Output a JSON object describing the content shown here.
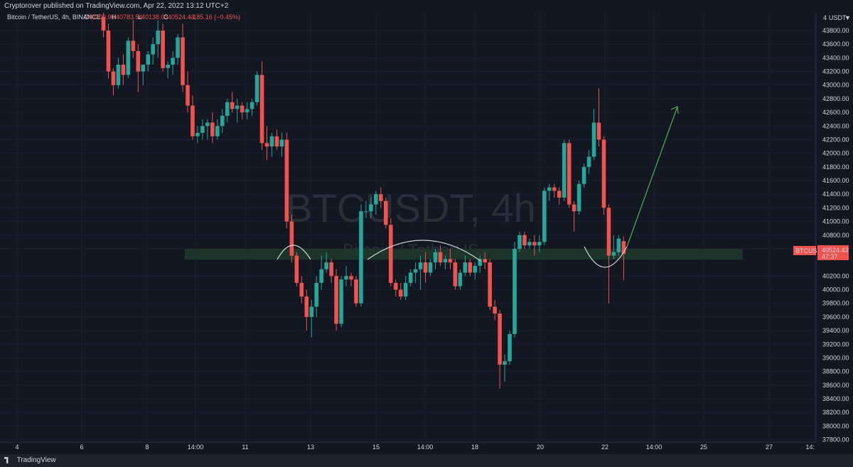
{
  "header": {
    "publisher_text": "Cryptorover published on TradingView.com, Apr 22, 2022 13:12 UTC+2"
  },
  "legend": {
    "symbol_text": "Bitcoin / TetherUS, 4h, BINANCE",
    "open_label": "O",
    "open_value": "40709.90",
    "high_label": "H",
    "high_value": "40783.54",
    "low_label": "L",
    "low_value": "40138.03",
    "close_label": "C",
    "close_value": "40524.43",
    "change_text": "−185.16 (−0.45%)"
  },
  "watermark": {
    "symbol": "BTCUSDT, 4h",
    "name": "Bitcoin / TetherUS"
  },
  "price_axis": {
    "currency": "USDT",
    "ticks": [
      "43800.00",
      "43600.00",
      "43400.00",
      "43200.00",
      "43000.00",
      "42800.00",
      "42600.00",
      "42400.00",
      "42200.00",
      "42000.00",
      "41800.00",
      "41600.00",
      "41400.00",
      "41200.00",
      "41000.00",
      "40800.00",
      "40600.00",
      "40200.00",
      "40000.00",
      "39800.00",
      "39600.00",
      "39400.00",
      "39200.00",
      "39000.00",
      "38800.00",
      "38600.00",
      "38400.00",
      "38200.00",
      "38000.00",
      "37800.00"
    ],
    "current_label": "BTCUSDT",
    "current_price": "40524.43",
    "countdown": "47:37"
  },
  "time_axis": {
    "labels": [
      "4",
      "6",
      "8",
      "14:00",
      "11",
      "13",
      "15",
      "14:00",
      "18",
      "20",
      "22",
      "14:00",
      "25",
      "27",
      "14:"
    ]
  },
  "footer": {
    "brand": "TradingView"
  },
  "chart_data": {
    "type": "candlestick",
    "symbol": "BTCUSDT",
    "timeframe": "4h",
    "exchange": "BINANCE",
    "ylim": [
      37700,
      44050
    ],
    "up_color": "#26a69a",
    "down_color": "#ef5350",
    "support_zone": [
      40440,
      40600
    ],
    "candles": [
      {
        "o": 44000,
        "h": 44100,
        "l": 43700,
        "c": 43800
      },
      {
        "o": 43800,
        "h": 43900,
        "l": 43100,
        "c": 43200
      },
      {
        "o": 43200,
        "h": 43250,
        "l": 42850,
        "c": 43000
      },
      {
        "o": 43000,
        "h": 43400,
        "l": 42950,
        "c": 43300
      },
      {
        "o": 43300,
        "h": 43450,
        "l": 43000,
        "c": 43150
      },
      {
        "o": 43150,
        "h": 43700,
        "l": 43100,
        "c": 43650
      },
      {
        "o": 43650,
        "h": 43950,
        "l": 43400,
        "c": 43500
      },
      {
        "o": 43500,
        "h": 43600,
        "l": 42900,
        "c": 43200
      },
      {
        "o": 43200,
        "h": 43300,
        "l": 43000,
        "c": 43300
      },
      {
        "o": 43300,
        "h": 43500,
        "l": 43200,
        "c": 43450
      },
      {
        "o": 43450,
        "h": 43700,
        "l": 43300,
        "c": 43600
      },
      {
        "o": 43600,
        "h": 43950,
        "l": 43400,
        "c": 43800
      },
      {
        "o": 43800,
        "h": 43900,
        "l": 43200,
        "c": 43250
      },
      {
        "o": 43250,
        "h": 43350,
        "l": 43100,
        "c": 43300
      },
      {
        "o": 43300,
        "h": 43500,
        "l": 43150,
        "c": 43400
      },
      {
        "o": 43400,
        "h": 43750,
        "l": 43300,
        "c": 43700
      },
      {
        "o": 43700,
        "h": 43900,
        "l": 42900,
        "c": 43000
      },
      {
        "o": 43000,
        "h": 43200,
        "l": 42600,
        "c": 42700
      },
      {
        "o": 42700,
        "h": 42850,
        "l": 42200,
        "c": 42250
      },
      {
        "o": 42250,
        "h": 42400,
        "l": 42150,
        "c": 42300
      },
      {
        "o": 42300,
        "h": 42500,
        "l": 42200,
        "c": 42400
      },
      {
        "o": 42400,
        "h": 42500,
        "l": 42200,
        "c": 42450
      },
      {
        "o": 42450,
        "h": 42600,
        "l": 42150,
        "c": 42250
      },
      {
        "o": 42250,
        "h": 42500,
        "l": 42200,
        "c": 42400
      },
      {
        "o": 42400,
        "h": 42650,
        "l": 42300,
        "c": 42550
      },
      {
        "o": 42550,
        "h": 42800,
        "l": 42450,
        "c": 42750
      },
      {
        "o": 42750,
        "h": 42900,
        "l": 42600,
        "c": 42650
      },
      {
        "o": 42650,
        "h": 42800,
        "l": 42450,
        "c": 42700
      },
      {
        "o": 42700,
        "h": 42750,
        "l": 42500,
        "c": 42600
      },
      {
        "o": 42600,
        "h": 42750,
        "l": 42500,
        "c": 42650
      },
      {
        "o": 42650,
        "h": 42800,
        "l": 42550,
        "c": 42750
      },
      {
        "o": 42750,
        "h": 43200,
        "l": 42700,
        "c": 43150
      },
      {
        "o": 43150,
        "h": 43350,
        "l": 42050,
        "c": 42150
      },
      {
        "o": 42150,
        "h": 42400,
        "l": 41900,
        "c": 42100
      },
      {
        "o": 42100,
        "h": 42300,
        "l": 41950,
        "c": 42250
      },
      {
        "o": 42250,
        "h": 42350,
        "l": 42050,
        "c": 42100
      },
      {
        "o": 42100,
        "h": 42300,
        "l": 41950,
        "c": 42200
      },
      {
        "o": 42200,
        "h": 42300,
        "l": 40900,
        "c": 41000
      },
      {
        "o": 41000,
        "h": 41100,
        "l": 40400,
        "c": 40500
      },
      {
        "o": 40500,
        "h": 40550,
        "l": 40050,
        "c": 40100
      },
      {
        "o": 40100,
        "h": 40200,
        "l": 39800,
        "c": 39900
      },
      {
        "o": 39900,
        "h": 40000,
        "l": 39400,
        "c": 39600
      },
      {
        "o": 39600,
        "h": 39850,
        "l": 39300,
        "c": 39750
      },
      {
        "o": 39750,
        "h": 40200,
        "l": 39600,
        "c": 40100
      },
      {
        "o": 40100,
        "h": 40500,
        "l": 40000,
        "c": 40300
      },
      {
        "o": 40300,
        "h": 40550,
        "l": 40250,
        "c": 40400
      },
      {
        "o": 40400,
        "h": 40450,
        "l": 40100,
        "c": 40200
      },
      {
        "o": 40200,
        "h": 40300,
        "l": 39400,
        "c": 39500
      },
      {
        "o": 39500,
        "h": 40200,
        "l": 39450,
        "c": 40150
      },
      {
        "o": 40150,
        "h": 40350,
        "l": 40050,
        "c": 40200
      },
      {
        "o": 40200,
        "h": 40250,
        "l": 40050,
        "c": 40150
      },
      {
        "o": 40150,
        "h": 40200,
        "l": 39750,
        "c": 39800
      },
      {
        "o": 39800,
        "h": 41250,
        "l": 39750,
        "c": 41150
      },
      {
        "o": 41150,
        "h": 41300,
        "l": 41050,
        "c": 41150
      },
      {
        "o": 41150,
        "h": 41350,
        "l": 41050,
        "c": 41250
      },
      {
        "o": 41250,
        "h": 41450,
        "l": 41100,
        "c": 41400
      },
      {
        "o": 41400,
        "h": 41500,
        "l": 41200,
        "c": 41300
      },
      {
        "o": 41300,
        "h": 41350,
        "l": 40900,
        "c": 40950
      },
      {
        "o": 40950,
        "h": 41050,
        "l": 40050,
        "c": 40100
      },
      {
        "o": 40100,
        "h": 40150,
        "l": 39900,
        "c": 40000
      },
      {
        "o": 40000,
        "h": 40100,
        "l": 39850,
        "c": 39900
      },
      {
        "o": 39900,
        "h": 40200,
        "l": 39850,
        "c": 40100
      },
      {
        "o": 40100,
        "h": 40300,
        "l": 40050,
        "c": 40250
      },
      {
        "o": 40250,
        "h": 40400,
        "l": 40100,
        "c": 40300
      },
      {
        "o": 40300,
        "h": 40500,
        "l": 40000,
        "c": 40400
      },
      {
        "o": 40400,
        "h": 40550,
        "l": 40100,
        "c": 40250
      },
      {
        "o": 40250,
        "h": 40450,
        "l": 40200,
        "c": 40400
      },
      {
        "o": 40400,
        "h": 40600,
        "l": 40300,
        "c": 40550
      },
      {
        "o": 40550,
        "h": 40650,
        "l": 40350,
        "c": 40400
      },
      {
        "o": 40400,
        "h": 40500,
        "l": 40300,
        "c": 40450
      },
      {
        "o": 40450,
        "h": 40600,
        "l": 40300,
        "c": 40400
      },
      {
        "o": 40400,
        "h": 40450,
        "l": 40000,
        "c": 40050
      },
      {
        "o": 40050,
        "h": 40300,
        "l": 40000,
        "c": 40250
      },
      {
        "o": 40250,
        "h": 40500,
        "l": 40200,
        "c": 40400
      },
      {
        "o": 40400,
        "h": 40450,
        "l": 40200,
        "c": 40250
      },
      {
        "o": 40250,
        "h": 40400,
        "l": 40150,
        "c": 40350
      },
      {
        "o": 40350,
        "h": 40500,
        "l": 40250,
        "c": 40450
      },
      {
        "o": 40450,
        "h": 40550,
        "l": 40300,
        "c": 40400
      },
      {
        "o": 40400,
        "h": 40450,
        "l": 39700,
        "c": 39750
      },
      {
        "o": 39750,
        "h": 39850,
        "l": 39550,
        "c": 39650
      },
      {
        "o": 39650,
        "h": 39700,
        "l": 38550,
        "c": 38900
      },
      {
        "o": 38900,
        "h": 39050,
        "l": 38650,
        "c": 38950
      },
      {
        "o": 38950,
        "h": 39400,
        "l": 38900,
        "c": 39350
      },
      {
        "o": 39350,
        "h": 40700,
        "l": 39300,
        "c": 40600
      },
      {
        "o": 40600,
        "h": 40850,
        "l": 40550,
        "c": 40800
      },
      {
        "o": 40800,
        "h": 40850,
        "l": 40600,
        "c": 40650
      },
      {
        "o": 40650,
        "h": 40750,
        "l": 40600,
        "c": 40700
      },
      {
        "o": 40700,
        "h": 40800,
        "l": 40500,
        "c": 40650
      },
      {
        "o": 40650,
        "h": 40800,
        "l": 40550,
        "c": 40700
      },
      {
        "o": 40700,
        "h": 41500,
        "l": 40650,
        "c": 41450
      },
      {
        "o": 41450,
        "h": 41550,
        "l": 41300,
        "c": 41500
      },
      {
        "o": 41500,
        "h": 41550,
        "l": 41350,
        "c": 41450
      },
      {
        "o": 41450,
        "h": 41500,
        "l": 41250,
        "c": 41350
      },
      {
        "o": 41350,
        "h": 42200,
        "l": 41300,
        "c": 42150
      },
      {
        "o": 42150,
        "h": 42200,
        "l": 41200,
        "c": 41250
      },
      {
        "o": 41250,
        "h": 41300,
        "l": 40850,
        "c": 41150
      },
      {
        "o": 41150,
        "h": 41600,
        "l": 41100,
        "c": 41550
      },
      {
        "o": 41550,
        "h": 41850,
        "l": 41500,
        "c": 41800
      },
      {
        "o": 41800,
        "h": 42050,
        "l": 41700,
        "c": 41950
      },
      {
        "o": 41950,
        "h": 42650,
        "l": 41900,
        "c": 42450
      },
      {
        "o": 42450,
        "h": 42950,
        "l": 42100,
        "c": 42200
      },
      {
        "o": 42200,
        "h": 42250,
        "l": 41100,
        "c": 41200
      },
      {
        "o": 41200,
        "h": 41250,
        "l": 39800,
        "c": 40500
      },
      {
        "o": 40500,
        "h": 40800,
        "l": 40450,
        "c": 40550
      },
      {
        "o": 40550,
        "h": 40800,
        "l": 40500,
        "c": 40750
      },
      {
        "o": 40709.9,
        "h": 40783.54,
        "l": 40138.03,
        "c": 40524.43
      }
    ]
  }
}
